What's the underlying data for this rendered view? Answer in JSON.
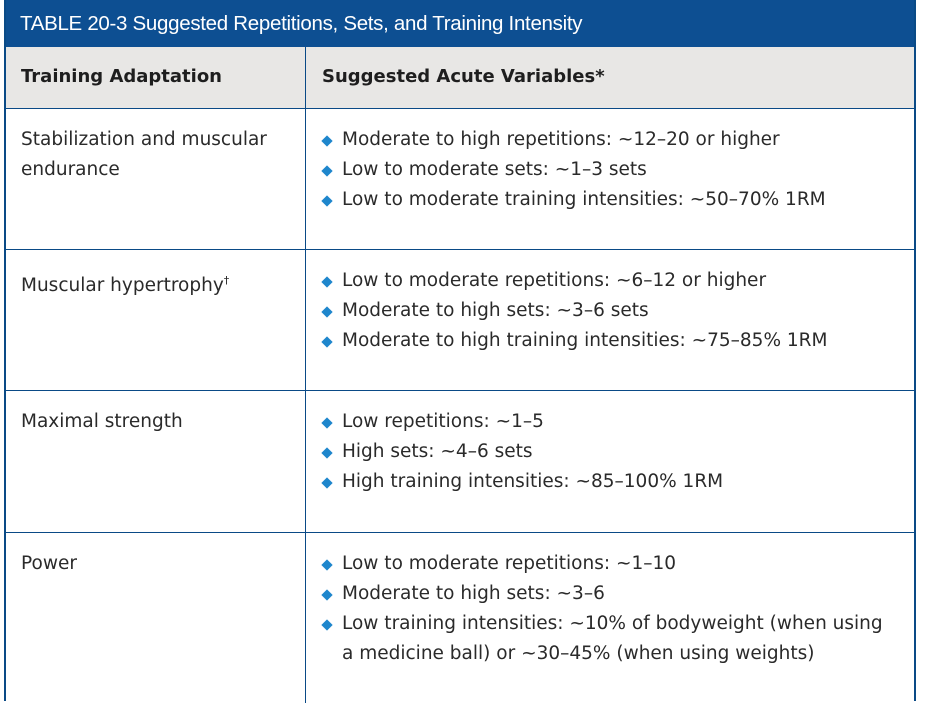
{
  "title": "TABLE 20-3 Suggested Repetitions, Sets, and Training Intensity",
  "header": {
    "col1": "Training Adaptation",
    "col2": "Suggested Acute Variables*"
  },
  "rows": [
    {
      "adaptation": "Stabilization and muscular endurance",
      "variables": [
        "Moderate to high repetitions:  ~12–20 or higher",
        "Low to moderate sets: ~1–3 sets",
        "Low to moderate training intensities: ~50–70% 1RM"
      ]
    },
    {
      "adaptation": "Muscular hypertrophy",
      "adaptation_sup": "†",
      "variables": [
        "Low to moderate repetitions: ~6–12 or higher",
        "Moderate to high sets: ~3–6 sets",
        "Moderate to high training intensities: ~75–85% 1RM"
      ]
    },
    {
      "adaptation": "Maximal strength",
      "variables": [
        "Low repetitions: ~1–5",
        "High sets: ~4–6 sets",
        "High training intensities: ~85–100% 1RM"
      ]
    },
    {
      "adaptation": "Power",
      "variables": [
        "Low to moderate repetitions: ~1–10",
        "Moderate to high sets: ~3–6",
        "Low training intensities: ~10% of bodyweight (when using a medicine ball) or ~30–45% (when using weights)"
      ]
    }
  ],
  "colors": {
    "title_bg": "#0d4f92",
    "header_bg": "#e8e7e5",
    "border": "#0a4a86",
    "bullet": "#1e86cc"
  },
  "icons": {
    "bullet": "diamond-bullet-icon"
  }
}
